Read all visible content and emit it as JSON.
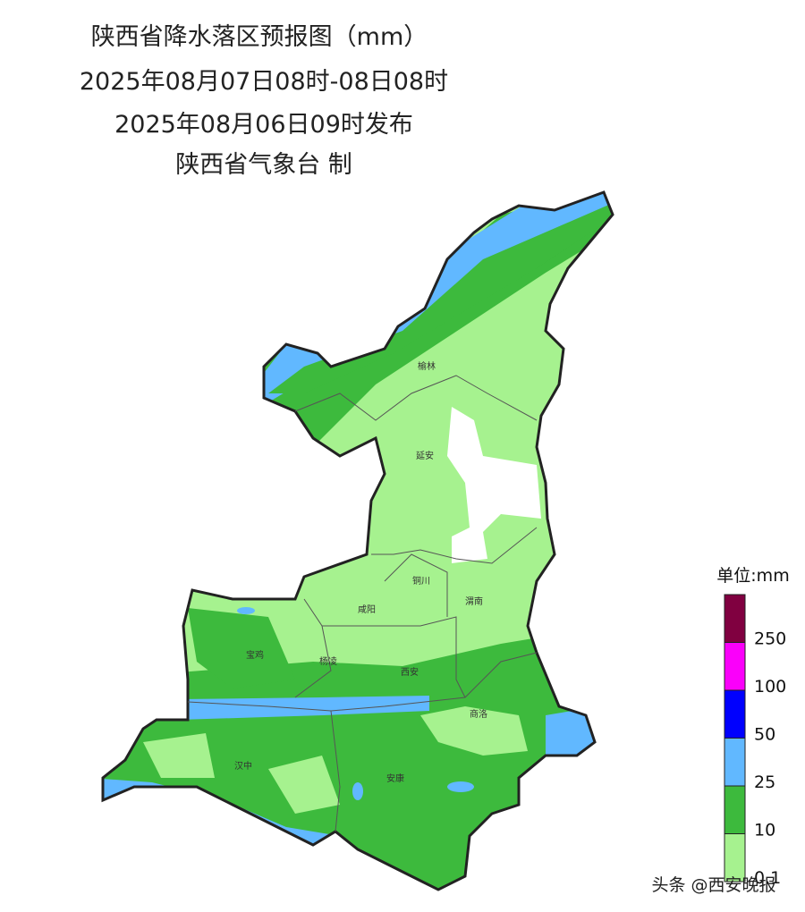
{
  "header": {
    "title": "陕西省降水落区预报图（mm）",
    "period": "2025年08月07日08时-08日08时",
    "issued": "2025年08月06日09时发布",
    "producer": "陕西省气象台 制"
  },
  "cities": [
    {
      "label": "榆林"
    },
    {
      "label": "延安"
    },
    {
      "label": "铜川"
    },
    {
      "label": "咸阳"
    },
    {
      "label": "渭南"
    },
    {
      "label": "宝鸡"
    },
    {
      "label": "杨凌"
    },
    {
      "label": "西安"
    },
    {
      "label": "商洛"
    },
    {
      "label": "汉中"
    },
    {
      "label": "安康"
    }
  ],
  "legend": {
    "title": "单位:mm",
    "levels": [
      {
        "label": "0.1",
        "color": "#a6f28f"
      },
      {
        "label": "10",
        "color": "#3dba3d"
      },
      {
        "label": "25",
        "color": "#61b8ff"
      },
      {
        "label": "50",
        "color": "#0000fe"
      },
      {
        "label": "100",
        "color": "#fa00fa"
      },
      {
        "label": "250",
        "color": "#800040"
      }
    ]
  },
  "watermark": "头条 @西安晚报"
}
